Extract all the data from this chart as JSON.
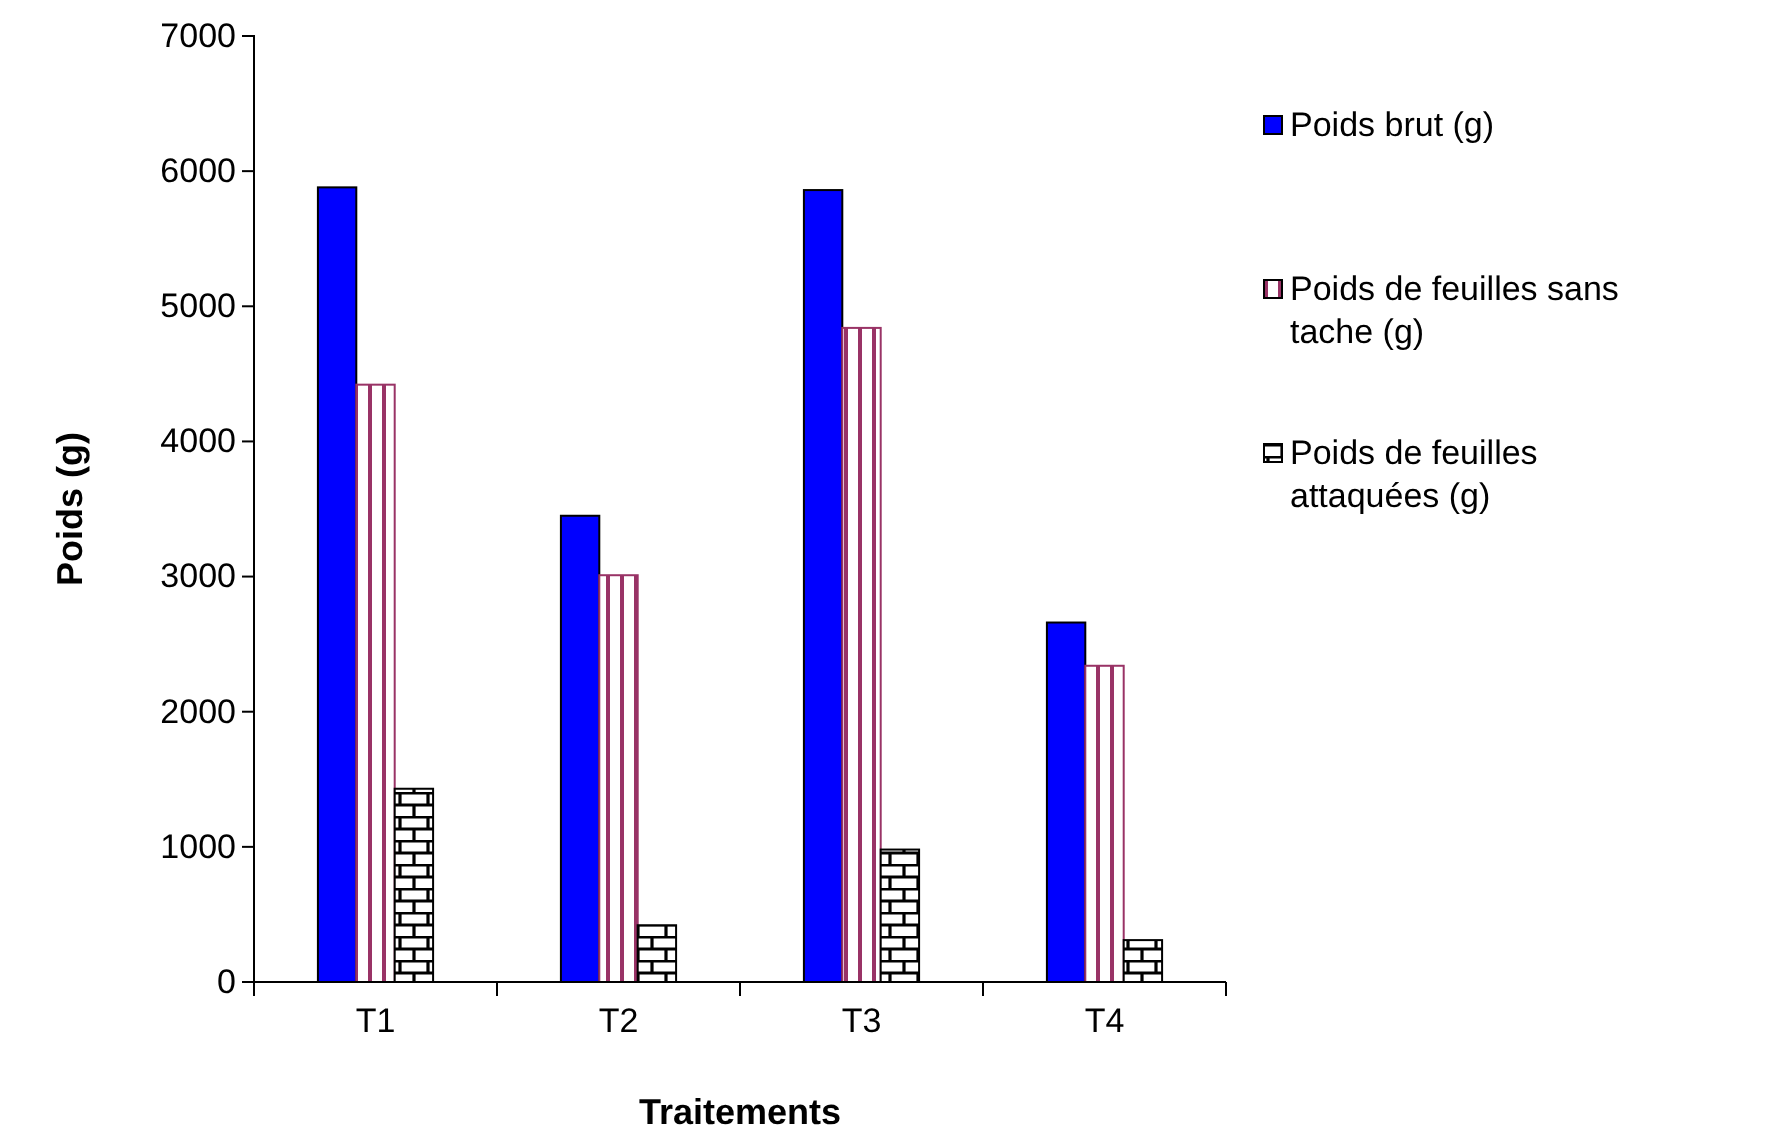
{
  "chart_data": {
    "type": "bar",
    "xlabel": "Traitements",
    "ylabel": "Poids (g)",
    "categories": [
      "T1",
      "T2",
      "T3",
      "T4"
    ],
    "series": [
      {
        "name": "Poids brut (g)",
        "color": "#0000ff",
        "values": [
          5880,
          3450,
          5860,
          2660
        ]
      },
      {
        "name": "Poids de feuilles sans tache (g)",
        "color": "#993366",
        "values": [
          4420,
          3010,
          4840,
          2340
        ]
      },
      {
        "name": "Poids de feuilles attaquées (g)",
        "color": "#000000",
        "values": [
          1430,
          420,
          980,
          310
        ]
      }
    ],
    "ylim": [
      0,
      7000
    ],
    "yticks": [
      0,
      1000,
      2000,
      3000,
      4000,
      5000,
      6000,
      7000
    ],
    "grid": false,
    "legend": "right"
  }
}
